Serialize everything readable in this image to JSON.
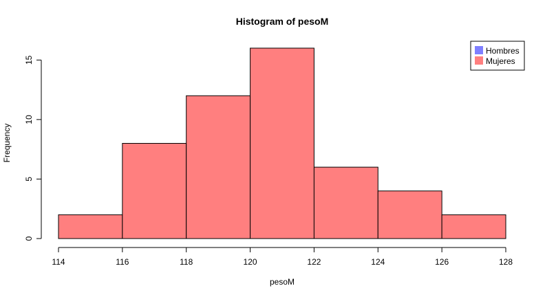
{
  "chart_data": {
    "type": "bar",
    "title": "Histogram of pesoM",
    "xlabel": "pesoM",
    "ylabel": "Frequency",
    "bins": [
      {
        "start": 114,
        "end": 116,
        "count": 2
      },
      {
        "start": 116,
        "end": 118,
        "count": 8
      },
      {
        "start": 118,
        "end": 120,
        "count": 12
      },
      {
        "start": 120,
        "end": 122,
        "count": 16
      },
      {
        "start": 122,
        "end": 124,
        "count": 6
      },
      {
        "start": 124,
        "end": 126,
        "count": 4
      },
      {
        "start": 126,
        "end": 128,
        "count": 2
      }
    ],
    "xlim": [
      114,
      128
    ],
    "ylim": [
      0,
      16
    ],
    "x_ticks": [
      "114",
      "116",
      "118",
      "120",
      "122",
      "124",
      "126",
      "128"
    ],
    "y_ticks": [
      "0",
      "5",
      "10",
      "15"
    ],
    "bar_color": "#ff7f7f",
    "grid": false,
    "legend_position": "top-right",
    "legend": [
      {
        "label": "Hombres",
        "color": "#7f7fff"
      },
      {
        "label": "Mujeres",
        "color": "#ff7f7f"
      }
    ]
  }
}
